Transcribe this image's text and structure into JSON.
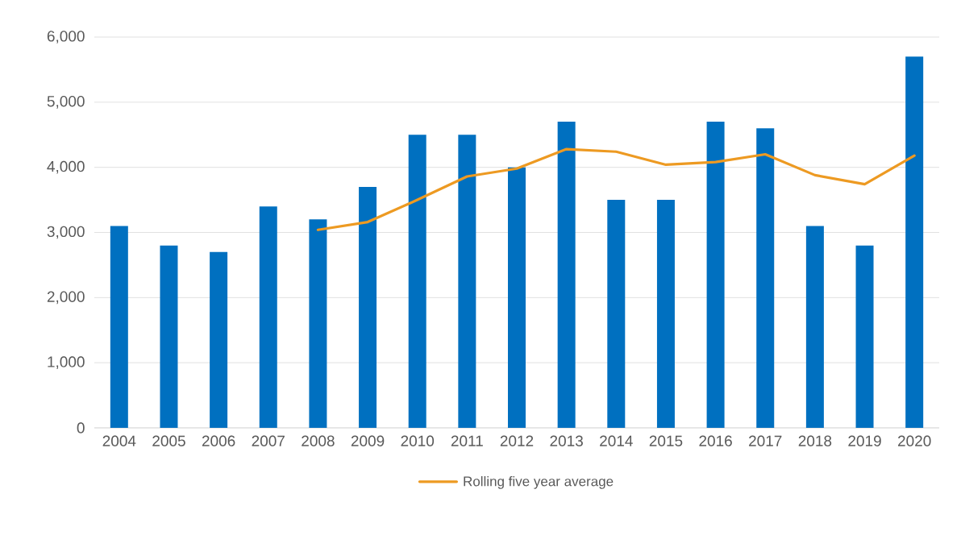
{
  "chart_data": {
    "type": "bar",
    "categories": [
      "2004",
      "2005",
      "2006",
      "2007",
      "2008",
      "2009",
      "2010",
      "2011",
      "2012",
      "2013",
      "2014",
      "2015",
      "2016",
      "2017",
      "2018",
      "2019",
      "2020"
    ],
    "series": [
      {
        "color": "#0070c0",
        "values": [
          3100,
          2800,
          2700,
          3400,
          3200,
          3700,
          4500,
          4500,
          4000,
          4700,
          3500,
          3500,
          4700,
          4600,
          3100,
          2800,
          5700
        ]
      },
      {
        "type": "line",
        "name": "Rolling five year average",
        "color": "#ed9a22",
        "values": [
          null,
          null,
          null,
          null,
          3040,
          3160,
          3500,
          3860,
          3980,
          4280,
          4240,
          4040,
          4080,
          4200,
          3880,
          3740,
          4180
        ]
      }
    ],
    "ylim": [
      0,
      6000
    ],
    "yticks": [
      {
        "value": 0,
        "label": "0"
      },
      {
        "value": 1000,
        "label": "1,000"
      },
      {
        "value": 2000,
        "label": "2,000"
      },
      {
        "value": 3000,
        "label": "3,000"
      },
      {
        "value": 4000,
        "label": "4,000"
      },
      {
        "value": 5000,
        "label": "5,000"
      },
      {
        "value": 6000,
        "label": "6,000"
      }
    ],
    "grid": "y",
    "legend": "bottom",
    "marker": "none"
  }
}
